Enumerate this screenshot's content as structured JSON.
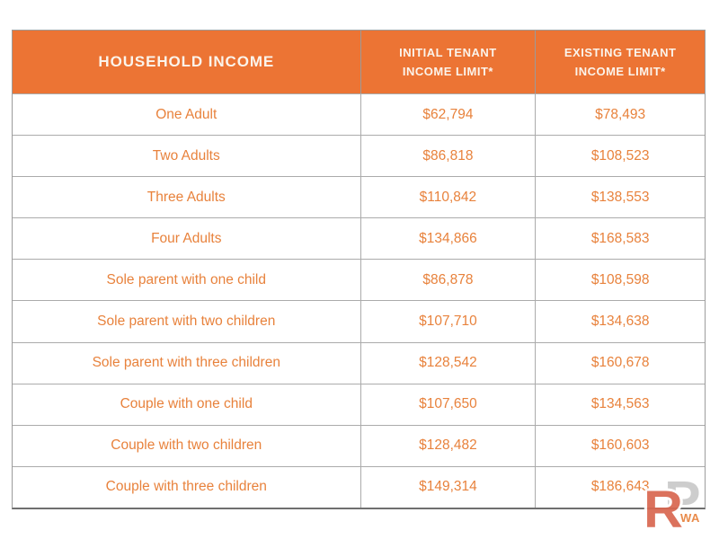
{
  "chart_data": {
    "type": "table",
    "columns": [
      "HOUSEHOLD INCOME",
      "INITIAL TENANT INCOME LIMIT*",
      "EXISTING TENANT INCOME LIMIT*"
    ],
    "rows": [
      [
        "One Adult",
        "$62,794",
        "$78,493"
      ],
      [
        "Two Adults",
        "$86,818",
        "$108,523"
      ],
      [
        "Three Adults",
        "$110,842",
        "$138,553"
      ],
      [
        "Four Adults",
        "$134,866",
        "$168,583"
      ],
      [
        "Sole parent with one child",
        "$86,878",
        "$108,598"
      ],
      [
        "Sole parent with two children",
        "$107,710",
        "$134,638"
      ],
      [
        "Sole parent with three children",
        "$128,542",
        "$160,678"
      ],
      [
        "Couple with one child",
        "$107,650",
        "$134,563"
      ],
      [
        "Couple with two children",
        "$128,482",
        "$160,603"
      ],
      [
        "Couple with three children",
        "$149,314",
        "$186,643"
      ]
    ]
  },
  "header": {
    "col1": "HOUSEHOLD INCOME",
    "col2_line1": "INITIAL TENANT",
    "col2_line2": "INCOME LIMIT*",
    "col3_line1": "EXISTING TENANT",
    "col3_line2": "INCOME LIMIT*"
  },
  "watermark": {
    "r": "R",
    "p": "P",
    "suffix": "WA"
  },
  "colors": {
    "header_bg": "#EC7434",
    "header_text": "#FBF4EB",
    "cell_text": "#E8823C",
    "grid_border": "#ABABAB",
    "outer_border": "#9C9C9C",
    "watermark_r": "#D96750",
    "watermark_p": "#C9C9C9",
    "watermark_wa": "#E8823C"
  }
}
